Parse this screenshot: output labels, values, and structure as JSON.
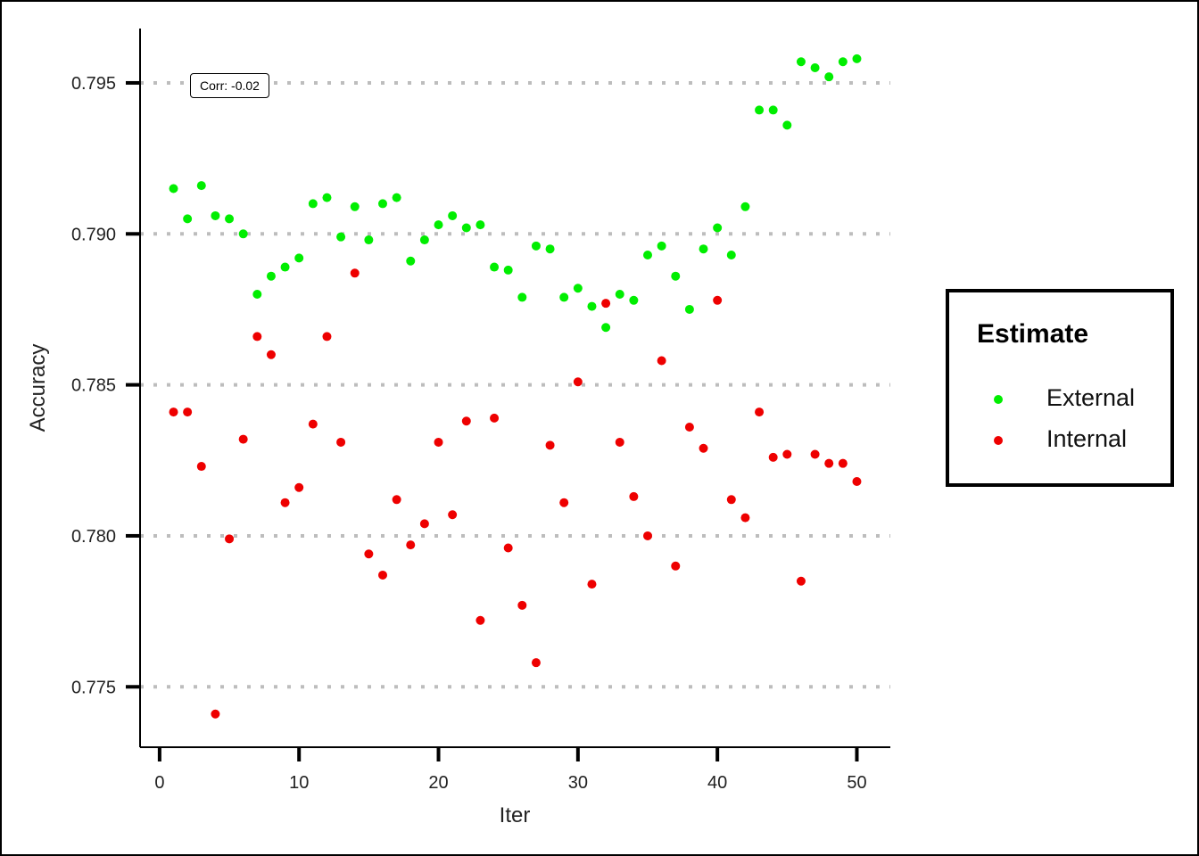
{
  "chart_data": {
    "type": "scatter",
    "title": "",
    "xlabel": "Iter",
    "ylabel": "Accuracy",
    "xlim": [
      -1.4,
      52.4
    ],
    "ylim": [
      0.773,
      0.7968
    ],
    "xticks": [
      0,
      10,
      20,
      30,
      40,
      50
    ],
    "xtick_labels": [
      "0",
      "10",
      "20",
      "30",
      "40",
      "50"
    ],
    "yticks": [
      0.775,
      0.78,
      0.785,
      0.79,
      0.795
    ],
    "ytick_labels": [
      "0.775",
      "0.780",
      "0.785",
      "0.790",
      "0.795"
    ],
    "grid": "horizontal dotted",
    "legend": {
      "title": "Estimate",
      "position": "right",
      "entries": [
        "External",
        "Internal"
      ]
    },
    "annotation": "Corr: -0.02",
    "series": [
      {
        "name": "External",
        "color": "#00ee00",
        "x": [
          1,
          2,
          3,
          4,
          5,
          6,
          7,
          8,
          9,
          10,
          11,
          12,
          13,
          14,
          15,
          16,
          17,
          18,
          19,
          20,
          21,
          22,
          23,
          24,
          25,
          26,
          27,
          28,
          29,
          30,
          31,
          32,
          33,
          34,
          35,
          36,
          37,
          38,
          39,
          40,
          41,
          42,
          43,
          44,
          45,
          46,
          47,
          48,
          49,
          50
        ],
        "y": [
          0.7915,
          0.7905,
          0.7916,
          0.7906,
          0.7905,
          0.79,
          0.788,
          0.7886,
          0.7889,
          0.7892,
          0.791,
          0.7912,
          0.7899,
          0.7909,
          0.7898,
          0.791,
          0.7912,
          0.7891,
          0.7898,
          0.7903,
          0.7906,
          0.7902,
          0.7903,
          0.7889,
          0.7888,
          0.7879,
          0.7896,
          0.7895,
          0.7879,
          0.7882,
          0.7876,
          0.7869,
          0.788,
          0.7878,
          0.7893,
          0.7896,
          0.7886,
          0.7875,
          0.7895,
          0.7902,
          0.7893,
          0.7909,
          0.7941,
          0.7941,
          0.7936,
          0.7957,
          0.7955,
          0.7952,
          0.7957,
          0.7958
        ]
      },
      {
        "name": "Internal",
        "color": "#ee0000",
        "x": [
          1,
          2,
          3,
          4,
          5,
          6,
          7,
          8,
          9,
          10,
          11,
          12,
          13,
          14,
          15,
          16,
          17,
          18,
          19,
          20,
          21,
          22,
          23,
          24,
          25,
          26,
          27,
          28,
          29,
          30,
          31,
          32,
          33,
          34,
          35,
          36,
          37,
          38,
          39,
          40,
          41,
          42,
          43,
          44,
          45,
          46,
          47,
          48,
          49,
          50
        ],
        "y": [
          0.7841,
          0.7841,
          0.7823,
          0.7741,
          0.7799,
          0.7832,
          0.7866,
          0.786,
          0.7811,
          0.7816,
          0.7837,
          0.7866,
          0.7831,
          0.7887,
          0.7794,
          0.7787,
          0.7812,
          0.7797,
          0.7804,
          0.7831,
          0.7807,
          0.7838,
          0.7772,
          0.7839,
          0.7796,
          0.7777,
          0.7758,
          0.783,
          0.7811,
          0.7851,
          0.7784,
          0.7877,
          0.7831,
          0.7813,
          0.78,
          0.7858,
          0.779,
          0.7836,
          0.7829,
          0.7878,
          0.7812,
          0.7806,
          0.7841,
          0.7826,
          0.7827,
          0.7785,
          0.7827,
          0.7824,
          0.7824,
          0.7818
        ]
      }
    ]
  }
}
